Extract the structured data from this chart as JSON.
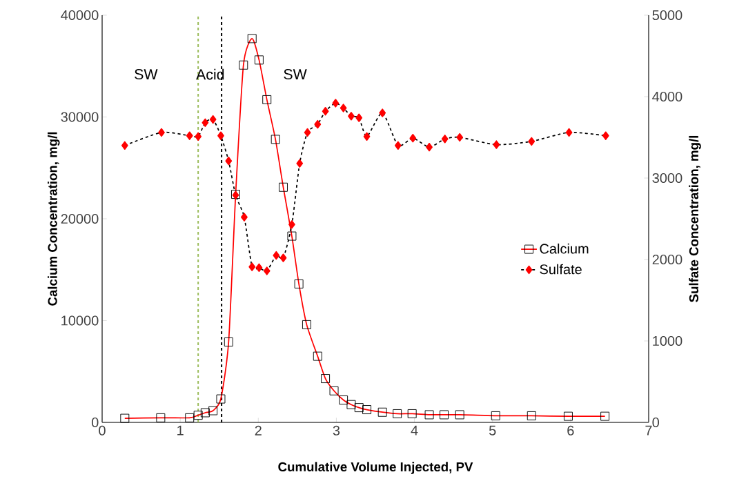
{
  "chart_data": {
    "type": "line",
    "xlabel": "Cumulative Volume Injected, PV",
    "ylabel": "Calcium Concentration, mg/l",
    "y2label": "Sulfate  Concentration, mg/l",
    "xlim": [
      0,
      7
    ],
    "xticks": [
      0,
      1,
      2,
      3,
      4,
      5,
      6,
      7
    ],
    "ylim": [
      0,
      40000
    ],
    "yticks": [
      0,
      10000,
      20000,
      30000,
      40000
    ],
    "y2lim": [
      0,
      5000
    ],
    "y2ticks": [
      0,
      1000,
      2000,
      3000,
      4000,
      5000
    ],
    "grid": false,
    "legend": "right",
    "series": [
      {
        "name": "Calcium",
        "color": "#ff0000",
        "marker": "square",
        "line_style": "solid",
        "axis": "y",
        "x": [
          0.29,
          0.75,
          1.12,
          1.23,
          1.32,
          1.42,
          1.52,
          1.62,
          1.71,
          1.81,
          1.92,
          2.01,
          2.11,
          2.22,
          2.32,
          2.43,
          2.52,
          2.62,
          2.76,
          2.86,
          2.97,
          3.09,
          3.19,
          3.29,
          3.39,
          3.59,
          3.78,
          3.97,
          4.19,
          4.38,
          4.58,
          5.04,
          5.5,
          5.97,
          6.44
        ],
        "values": [
          400,
          450,
          450,
          700,
          950,
          1150,
          2300,
          7900,
          22400,
          35100,
          37700,
          35600,
          31700,
          27800,
          23100,
          18300,
          13600,
          9600,
          6500,
          4300,
          3100,
          2200,
          1750,
          1450,
          1250,
          1000,
          850,
          850,
          750,
          750,
          750,
          650,
          650,
          600,
          600
        ]
      },
      {
        "name": "Sulfate",
        "color": "#ff0000",
        "marker": "diamond",
        "line_style": "dashed",
        "axis": "y2",
        "x": [
          0.29,
          0.76,
          1.12,
          1.23,
          1.32,
          1.42,
          1.52,
          1.62,
          1.71,
          1.82,
          1.92,
          2.01,
          2.11,
          2.23,
          2.32,
          2.43,
          2.53,
          2.63,
          2.76,
          2.86,
          2.99,
          3.09,
          3.19,
          3.29,
          3.39,
          3.59,
          3.79,
          3.98,
          4.19,
          4.39,
          4.58,
          5.05,
          5.5,
          5.98,
          6.45
        ],
        "values": [
          3400,
          3560,
          3520,
          3510,
          3680,
          3720,
          3520,
          3210,
          2790,
          2520,
          1910,
          1900,
          1860,
          2050,
          2020,
          2430,
          3180,
          3560,
          3660,
          3820,
          3920,
          3860,
          3760,
          3740,
          3510,
          3800,
          3400,
          3490,
          3380,
          3480,
          3500,
          3410,
          3450,
          3560,
          3520
        ]
      }
    ],
    "ref_lines": [
      {
        "axis": "x",
        "value": 1.23,
        "color": "#9bbb59",
        "line_style": "dashed"
      },
      {
        "axis": "x",
        "value": 1.53,
        "color": "#000000",
        "line_style": "dashed"
      }
    ],
    "annotations": [
      "SW",
      "Acid",
      "SW"
    ]
  }
}
